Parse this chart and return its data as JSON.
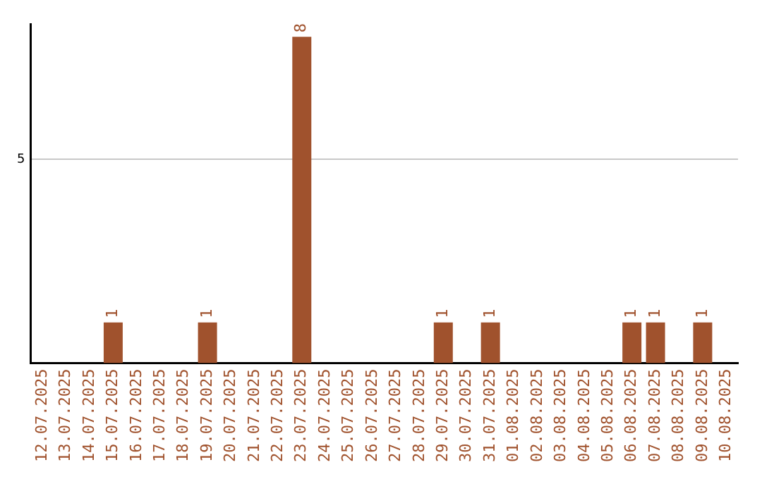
{
  "chart_data": {
    "type": "bar",
    "categories": [
      "12.07.2025",
      "13.07.2025",
      "14.07.2025",
      "15.07.2025",
      "16.07.2025",
      "17.07.2025",
      "18.07.2025",
      "19.07.2025",
      "20.07.2025",
      "21.07.2025",
      "22.07.2025",
      "23.07.2025",
      "24.07.2025",
      "25.07.2025",
      "26.07.2025",
      "27.07.2025",
      "28.07.2025",
      "29.07.2025",
      "30.07.2025",
      "31.07.2025",
      "01.08.2025",
      "02.08.2025",
      "03.08.2025",
      "04.08.2025",
      "05.08.2025",
      "06.08.2025",
      "07.08.2025",
      "08.08.2025",
      "09.08.2025",
      "10.08.2025"
    ],
    "values": [
      0,
      0,
      0,
      1,
      0,
      0,
      0,
      1,
      0,
      0,
      0,
      8,
      0,
      0,
      0,
      0,
      0,
      1,
      0,
      1,
      0,
      0,
      0,
      0,
      0,
      1,
      1,
      0,
      1,
      0
    ],
    "value_labels": [
      null,
      null,
      null,
      "1",
      null,
      null,
      null,
      "1",
      null,
      null,
      null,
      "8",
      null,
      null,
      null,
      null,
      null,
      "1",
      null,
      "1",
      null,
      null,
      null,
      null,
      null,
      "1",
      "1",
      null,
      "1",
      null
    ],
    "color": "#a0522d",
    "ylim": [
      0,
      8.3
    ],
    "yticks": [
      5
    ],
    "grid": "y",
    "legend": false
  }
}
